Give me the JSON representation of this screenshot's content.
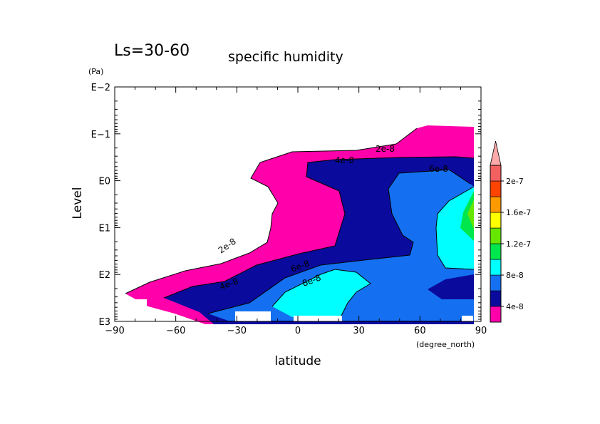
{
  "chart_data": {
    "type": "contour",
    "title": "specific humidity",
    "subtitle": "Ls=30-60",
    "xlabel": "latitude",
    "x_unit": "(degree_north)",
    "ylabel": "Level",
    "y_unit": "(Pa)",
    "xlim": [
      -90,
      90
    ],
    "x_ticks": [
      -90,
      -60,
      -30,
      0,
      30,
      60,
      90
    ],
    "x_tick_labels": [
      "−90",
      "−60",
      "−30",
      "0",
      "30",
      "60",
      "90"
    ],
    "y_scale": "log",
    "y_inverted": true,
    "ylim": [
      0.01,
      1000
    ],
    "y_ticks": [
      0.01,
      0.1,
      1,
      10,
      100,
      1000
    ],
    "y_tick_labels": [
      "E−2",
      "E−1",
      "E0",
      "E1",
      "E2",
      "E3"
    ],
    "data_lat_range": [
      -87,
      86
    ],
    "levels": [
      "0",
      "4e-8",
      "8e-8",
      "1.2e-7",
      "1.6e-7",
      "2e-7",
      "2.4e-7"
    ],
    "colorbar": {
      "labels": [
        "4e-8",
        "8e-8",
        "1.2e-7",
        "1.6e-7",
        "2e-7"
      ],
      "colors": [
        "#ff00aa",
        "#0a0a9c",
        "#1470f0",
        "#00ffff",
        "#00e64d",
        "#66e600",
        "#ffff00",
        "#ff9900",
        "#ff4400",
        "#f26060",
        "#ffaaaa"
      ]
    },
    "contour_labels": [
      "2e-8",
      "4e-8",
      "6e-8",
      "2e-8",
      "4e-8",
      "6e-8",
      "8e-8"
    ],
    "legend_position": "right"
  }
}
